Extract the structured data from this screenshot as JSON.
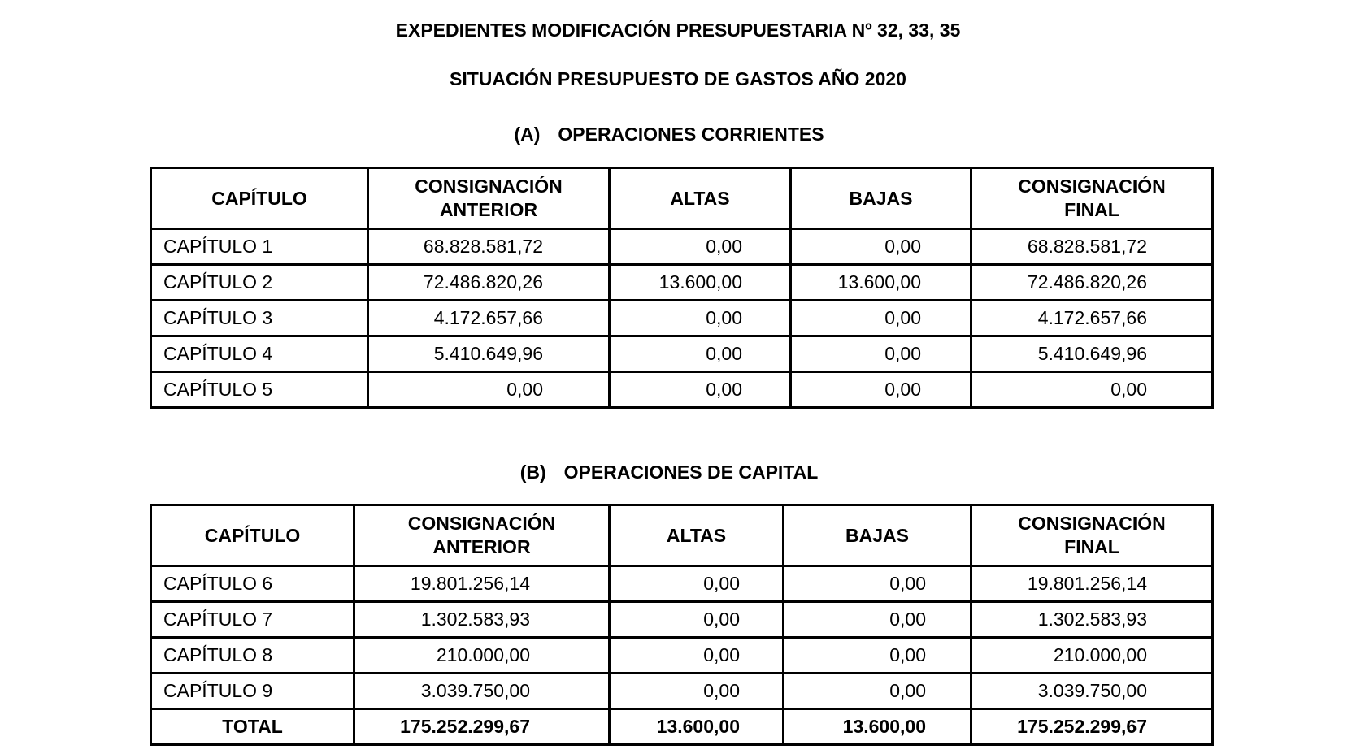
{
  "title": "EXPEDIENTES MODIFICACIÓN PRESUPUESTARIA Nº 32, 33, 35",
  "subtitle": "SITUACIÓN PRESUPUESTO DE GASTOS AÑO 2020",
  "columns": [
    "CAPÍTULO",
    "CONSIGNACIÓN ANTERIOR",
    "ALTAS",
    "BAJAS",
    "CONSIGNACIÓN FINAL"
  ],
  "section_a": {
    "letter": "(A)",
    "title": "OPERACIONES CORRIENTES",
    "rows": [
      [
        "CAPÍTULO 1",
        "68.828.581,72",
        "0,00",
        "0,00",
        "68.828.581,72"
      ],
      [
        "CAPÍTULO 2",
        "72.486.820,26",
        "13.600,00",
        "13.600,00",
        "72.486.820,26"
      ],
      [
        "CAPÍTULO 3",
        "4.172.657,66",
        "0,00",
        "0,00",
        "4.172.657,66"
      ],
      [
        "CAPÍTULO 4",
        "5.410.649,96",
        "0,00",
        "0,00",
        "5.410.649,96"
      ],
      [
        "CAPÍTULO 5",
        "0,00",
        "0,00",
        "0,00",
        "0,00"
      ]
    ]
  },
  "section_b": {
    "letter": "(B)",
    "title": "OPERACIONES DE CAPITAL",
    "rows": [
      [
        "CAPÍTULO 6",
        "19.801.256,14",
        "0,00",
        "0,00",
        "19.801.256,14"
      ],
      [
        "CAPÍTULO 7",
        "1.302.583,93",
        "0,00",
        "0,00",
        "1.302.583,93"
      ],
      [
        "CAPÍTULO 8",
        "210.000,00",
        "0,00",
        "0,00",
        "210.000,00"
      ],
      [
        "CAPÍTULO 9",
        "3.039.750,00",
        "0,00",
        "0,00",
        "3.039.750,00"
      ]
    ],
    "total": [
      "TOTAL",
      "175.252.299,67",
      "13.600,00",
      "13.600,00",
      "175.252.299,67"
    ]
  }
}
